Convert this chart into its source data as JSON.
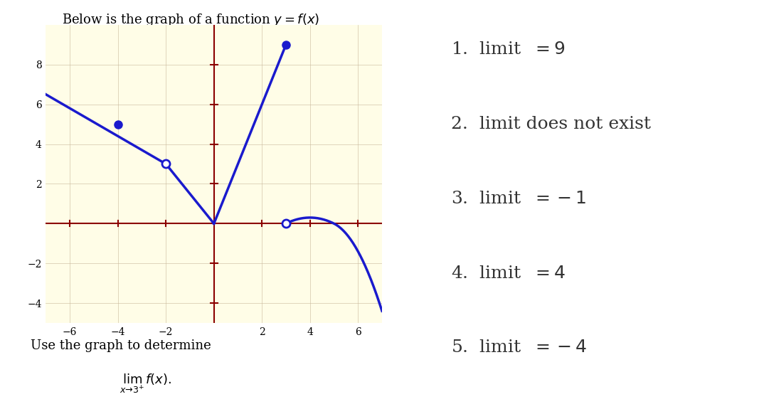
{
  "title": "Below is the graph of a function $y = f(x)$",
  "graph_bg": "#fffde7",
  "graph_border": "#d4c8a0",
  "axis_color": "#8b0000",
  "curve_color": "#1a1acd",
  "xlim": [
    -7,
    7
  ],
  "ylim": [
    -5,
    10
  ],
  "xticks": [
    -6,
    -4,
    -2,
    2,
    4,
    6
  ],
  "yticks": [
    -4,
    -2,
    2,
    4,
    6,
    8
  ],
  "right_panel_bg": "#d8d8d8",
  "options": [
    "1.  limit  $= 9$",
    "2.  limit does not exist",
    "3.  limit  $= -1$",
    "4.  limit  $= 4$",
    "5.  limit  $= -4$"
  ],
  "below_text": "Use the graph to determine",
  "limit_text": "$\\lim_{x \\to 3^+} f(x).$"
}
